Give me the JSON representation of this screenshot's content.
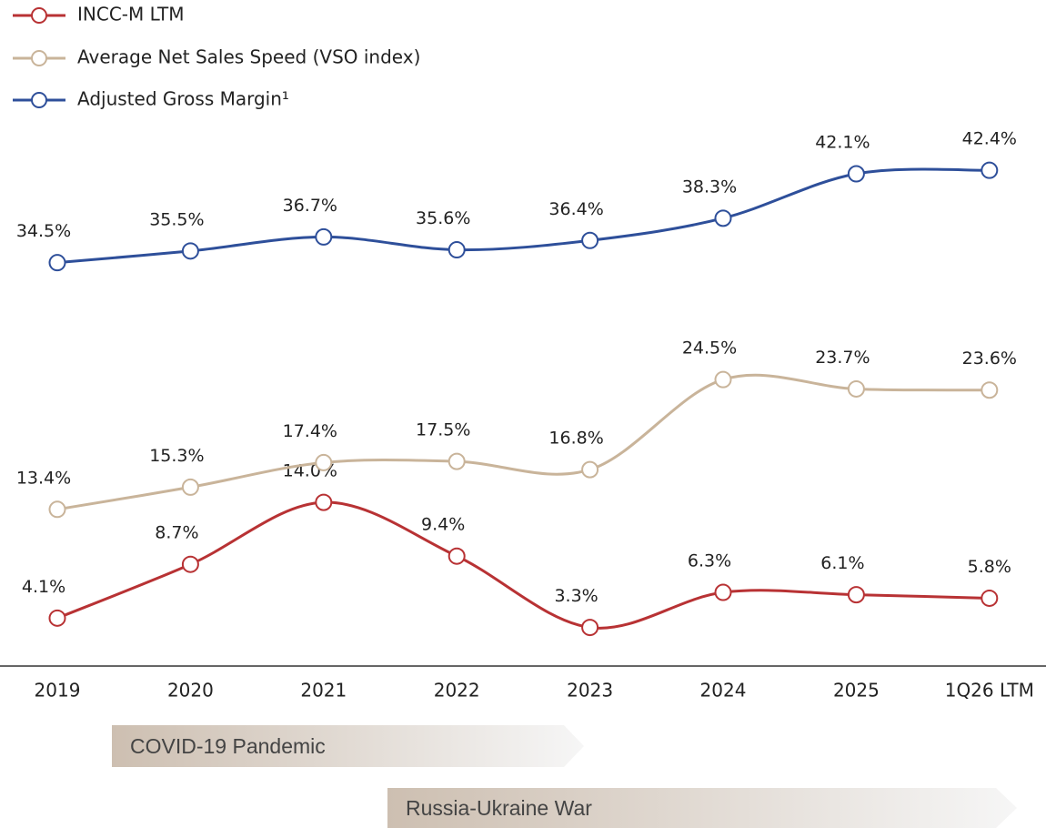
{
  "chart_data": {
    "type": "line",
    "categories": [
      "2019",
      "2020",
      "2021",
      "2022",
      "2023",
      "2024",
      "2025",
      "1Q26 LTM"
    ],
    "legend": "top-left",
    "series": [
      {
        "name": "INCC-M LTM",
        "color": "#b83234",
        "values": [
          4.1,
          8.7,
          14.0,
          9.4,
          3.3,
          6.3,
          6.1,
          5.8
        ],
        "value_labels": [
          "4.1%",
          "8.7%",
          "14.0%",
          "9.4%",
          "3.3%",
          "6.3%",
          "6.1%",
          "5.8%"
        ]
      },
      {
        "name": "Average Net Sales Speed (VSO index)",
        "color": "#c9b49a",
        "values": [
          13.4,
          15.3,
          17.4,
          17.5,
          16.8,
          24.5,
          23.7,
          23.6
        ],
        "value_labels": [
          "13.4%",
          "15.3%",
          "17.4%",
          "17.5%",
          "16.8%",
          "24.5%",
          "23.7%",
          "23.6%"
        ]
      },
      {
        "name": "Adjusted Gross Margin¹",
        "color": "#2e4f9a",
        "values": [
          34.5,
          35.5,
          36.7,
          35.6,
          36.4,
          38.3,
          42.1,
          42.4
        ],
        "value_labels": [
          "34.5%",
          "35.5%",
          "36.7%",
          "35.6%",
          "36.4%",
          "38.3%",
          "42.1%",
          "42.4%"
        ]
      }
    ],
    "annotations": [
      "COVID-19 Pandemic",
      "Russia-Ukraine War"
    ]
  }
}
